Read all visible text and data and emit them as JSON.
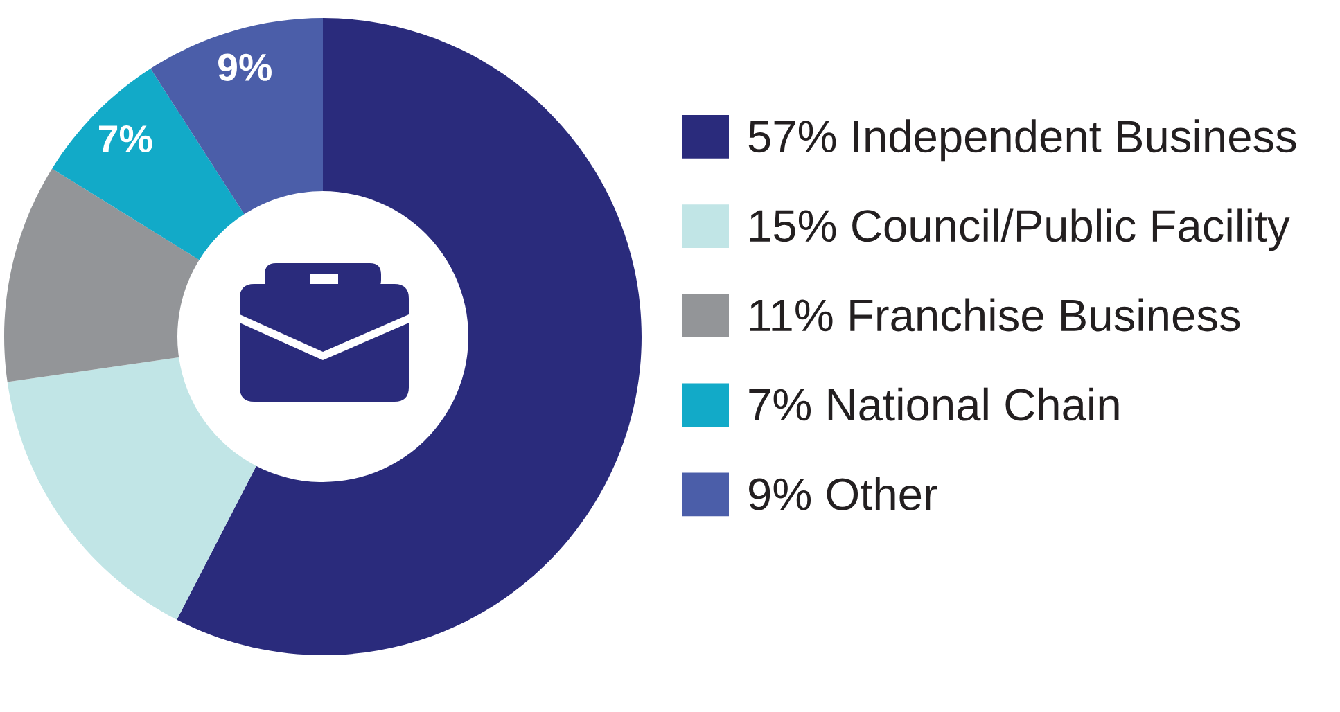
{
  "chart_data": {
    "type": "donut",
    "categories": [
      "57% Independent Business",
      "15% Council/Public Facility",
      "11% Franchise Business",
      "7% National Chain",
      "9% Other"
    ],
    "values": [
      57,
      15,
      11,
      7,
      9
    ],
    "colors": [
      "#2a2b7c",
      "#c1e5e6",
      "#939598",
      "#12aac8",
      "#4b5ea9"
    ],
    "value_labels": [
      null,
      null,
      null,
      "7%",
      "9%"
    ],
    "legend": "right"
  }
}
